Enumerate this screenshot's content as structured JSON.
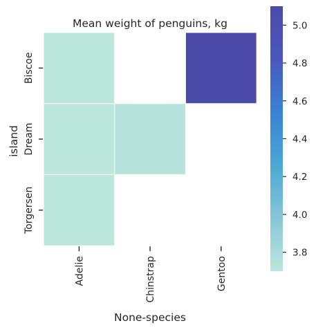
{
  "chart_data": {
    "type": "heatmap",
    "title": "Mean weight of penguins, kg",
    "xlabel": "None-species",
    "ylabel": "island",
    "x_categories": [
      "Adelie",
      "Chinstrap",
      "Gentoo"
    ],
    "y_categories": [
      "Biscoe",
      "Dream",
      "Torgersen"
    ],
    "values": [
      [
        3.71,
        null,
        5.08
      ],
      [
        3.69,
        3.73,
        null
      ],
      [
        3.71,
        null,
        null
      ]
    ],
    "colorbar": {
      "vmin": 3.7,
      "vmax": 5.1,
      "ticks": [
        "3.8",
        "4.0",
        "4.2",
        "4.4",
        "4.6",
        "4.8",
        "5.0"
      ],
      "colors": [
        "#bce7db",
        "#86c5d6",
        "#4aa8d4",
        "#3a82d6",
        "#4a58bd",
        "#4a4aa8"
      ]
    },
    "grid": false
  }
}
